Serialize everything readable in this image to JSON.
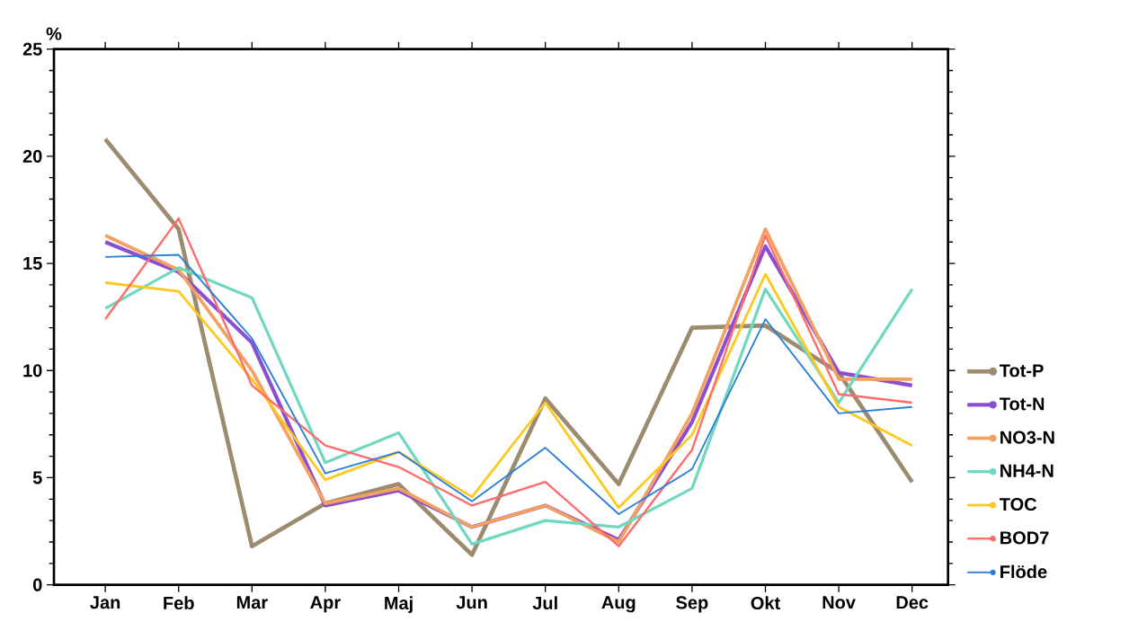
{
  "chart_data": {
    "type": "line",
    "ylabel": "%",
    "categories": [
      "Jan",
      "Feb",
      "Mar",
      "Apr",
      "Maj",
      "Jun",
      "Jul",
      "Aug",
      "Sep",
      "Okt",
      "Nov",
      "Dec"
    ],
    "ylim": [
      0,
      25
    ],
    "yticks": [
      0,
      5,
      10,
      15,
      20,
      25
    ],
    "grid": false,
    "legend": "right",
    "series": [
      {
        "name": "Tot-P",
        "color": "#9c8b6e",
        "values": [
          20.8,
          16.6,
          1.8,
          3.8,
          4.7,
          1.4,
          8.7,
          4.7,
          12.0,
          12.1,
          9.9,
          4.8
        ]
      },
      {
        "name": "Tot-N",
        "color": "#8a4fd0",
        "values": [
          16.0,
          14.6,
          11.3,
          3.7,
          4.4,
          2.7,
          3.7,
          2.1,
          7.6,
          15.8,
          9.9,
          9.3
        ]
      },
      {
        "name": "NO3-N",
        "color": "#f4a060",
        "values": [
          16.3,
          14.7,
          10.0,
          3.8,
          4.5,
          2.7,
          3.7,
          2.0,
          8.0,
          16.6,
          9.6,
          9.6
        ]
      },
      {
        "name": "NH4-N",
        "color": "#70d8c0",
        "values": [
          12.9,
          14.8,
          13.4,
          5.7,
          7.1,
          1.9,
          3.0,
          2.7,
          4.5,
          13.8,
          8.5,
          13.8
        ]
      },
      {
        "name": "TOC",
        "color": "#ffc820",
        "values": [
          14.1,
          13.7,
          9.6,
          4.9,
          6.2,
          4.1,
          8.5,
          3.6,
          7.0,
          14.5,
          8.3,
          6.5
        ]
      },
      {
        "name": "BOD7",
        "color": "#ff6a6a",
        "values": [
          12.4,
          17.1,
          9.3,
          6.5,
          5.5,
          3.7,
          4.8,
          1.8,
          6.3,
          16.3,
          8.9,
          8.5
        ]
      },
      {
        "name": "Flöde",
        "color": "#2a7fd8",
        "values": [
          15.3,
          15.4,
          11.5,
          5.2,
          6.2,
          3.9,
          6.4,
          3.3,
          5.4,
          12.4,
          8.0,
          8.3
        ]
      }
    ]
  }
}
